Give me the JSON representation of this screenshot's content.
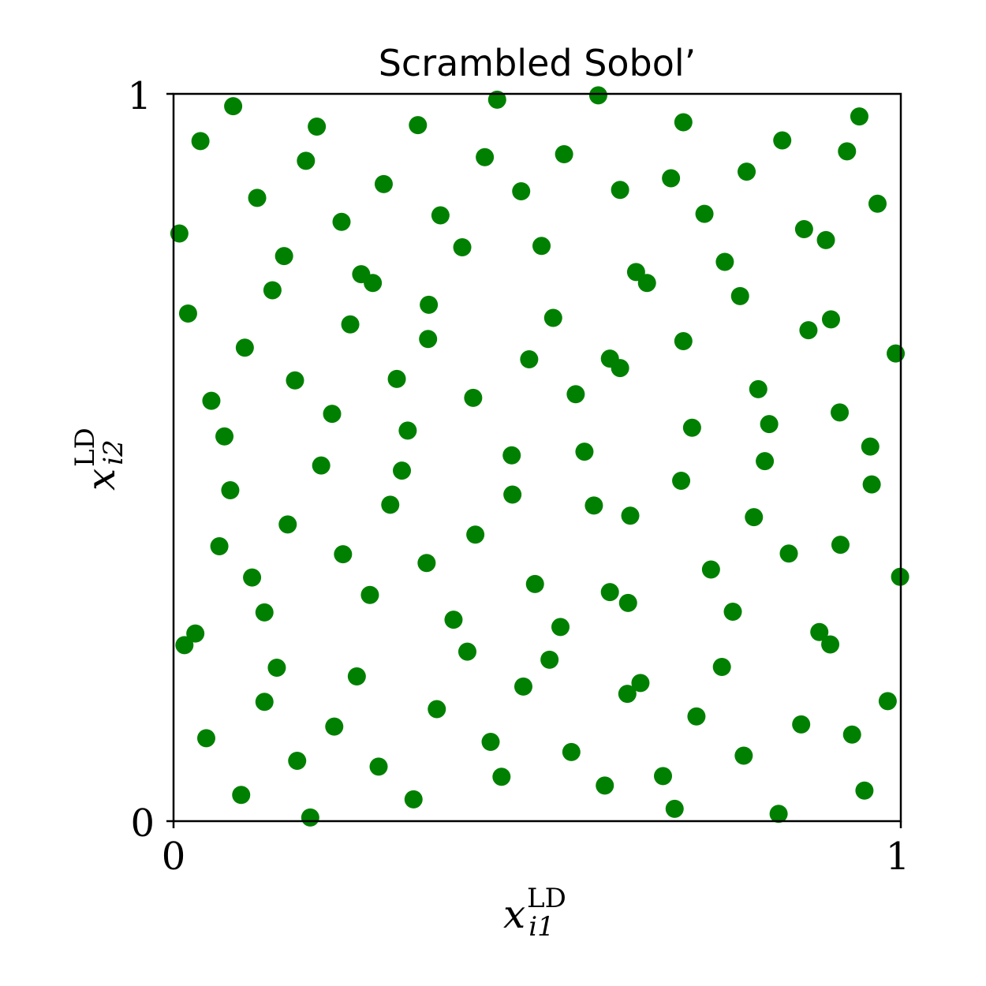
{
  "chart_data": {
    "type": "scatter",
    "title": "Scrambled Sobol’",
    "xlabel": {
      "base": "x",
      "sub": "i1",
      "sup": "LD"
    },
    "ylabel": {
      "base": "x",
      "sub": "i2",
      "sup": "LD"
    },
    "xlim": [
      0,
      1
    ],
    "ylim": [
      0,
      1
    ],
    "xticks": [
      "0",
      "1"
    ],
    "yticks": [
      "0",
      "1"
    ],
    "grid": false,
    "color": "#008000",
    "points": [
      [
        0.082,
        0.983
      ],
      [
        0.445,
        0.992
      ],
      [
        0.584,
        0.998
      ],
      [
        0.037,
        0.935
      ],
      [
        0.197,
        0.955
      ],
      [
        0.336,
        0.957
      ],
      [
        0.701,
        0.961
      ],
      [
        0.943,
        0.969
      ],
      [
        0.182,
        0.908
      ],
      [
        0.428,
        0.913
      ],
      [
        0.537,
        0.917
      ],
      [
        0.837,
        0.936
      ],
      [
        0.926,
        0.921
      ],
      [
        0.289,
        0.876
      ],
      [
        0.478,
        0.866
      ],
      [
        0.614,
        0.868
      ],
      [
        0.684,
        0.884
      ],
      [
        0.788,
        0.893
      ],
      [
        0.115,
        0.857
      ],
      [
        0.367,
        0.833
      ],
      [
        0.73,
        0.835
      ],
      [
        0.968,
        0.849
      ],
      [
        0.008,
        0.808
      ],
      [
        0.231,
        0.824
      ],
      [
        0.867,
        0.814
      ],
      [
        0.897,
        0.799
      ],
      [
        0.152,
        0.777
      ],
      [
        0.397,
        0.789
      ],
      [
        0.506,
        0.791
      ],
      [
        0.758,
        0.769
      ],
      [
        0.258,
        0.752
      ],
      [
        0.274,
        0.74
      ],
      [
        0.636,
        0.755
      ],
      [
        0.651,
        0.74
      ],
      [
        0.136,
        0.73
      ],
      [
        0.779,
        0.722
      ],
      [
        0.02,
        0.698
      ],
      [
        0.351,
        0.71
      ],
      [
        0.522,
        0.692
      ],
      [
        0.243,
        0.683
      ],
      [
        0.873,
        0.675
      ],
      [
        0.904,
        0.69
      ],
      [
        0.701,
        0.66
      ],
      [
        0.098,
        0.651
      ],
      [
        0.35,
        0.663
      ],
      [
        0.489,
        0.635
      ],
      [
        0.6,
        0.636
      ],
      [
        0.993,
        0.643
      ],
      [
        0.307,
        0.608
      ],
      [
        0.614,
        0.623
      ],
      [
        0.167,
        0.606
      ],
      [
        0.052,
        0.578
      ],
      [
        0.412,
        0.582
      ],
      [
        0.553,
        0.587
      ],
      [
        0.804,
        0.594
      ],
      [
        0.218,
        0.56
      ],
      [
        0.916,
        0.562
      ],
      [
        0.07,
        0.529
      ],
      [
        0.322,
        0.537
      ],
      [
        0.713,
        0.541
      ],
      [
        0.819,
        0.546
      ],
      [
        0.958,
        0.515
      ],
      [
        0.465,
        0.503
      ],
      [
        0.565,
        0.508
      ],
      [
        0.203,
        0.489
      ],
      [
        0.813,
        0.495
      ],
      [
        0.314,
        0.482
      ],
      [
        0.078,
        0.455
      ],
      [
        0.96,
        0.463
      ],
      [
        0.698,
        0.468
      ],
      [
        0.466,
        0.449
      ],
      [
        0.578,
        0.434
      ],
      [
        0.298,
        0.435
      ],
      [
        0.628,
        0.42
      ],
      [
        0.157,
        0.408
      ],
      [
        0.798,
        0.418
      ],
      [
        0.415,
        0.394
      ],
      [
        0.063,
        0.378
      ],
      [
        0.233,
        0.367
      ],
      [
        0.917,
        0.38
      ],
      [
        0.846,
        0.368
      ],
      [
        0.348,
        0.355
      ],
      [
        0.739,
        0.346
      ],
      [
        0.999,
        0.336
      ],
      [
        0.108,
        0.335
      ],
      [
        0.497,
        0.326
      ],
      [
        0.27,
        0.311
      ],
      [
        0.6,
        0.315
      ],
      [
        0.625,
        0.3
      ],
      [
        0.125,
        0.287
      ],
      [
        0.769,
        0.288
      ],
      [
        0.385,
        0.277
      ],
      [
        0.532,
        0.267
      ],
      [
        0.03,
        0.258
      ],
      [
        0.015,
        0.242
      ],
      [
        0.888,
        0.26
      ],
      [
        0.903,
        0.243
      ],
      [
        0.404,
        0.233
      ],
      [
        0.517,
        0.222
      ],
      [
        0.142,
        0.211
      ],
      [
        0.754,
        0.212
      ],
      [
        0.252,
        0.199
      ],
      [
        0.481,
        0.185
      ],
      [
        0.642,
        0.19
      ],
      [
        0.624,
        0.175
      ],
      [
        0.125,
        0.164
      ],
      [
        0.982,
        0.165
      ],
      [
        0.362,
        0.154
      ],
      [
        0.719,
        0.144
      ],
      [
        0.863,
        0.133
      ],
      [
        0.221,
        0.13
      ],
      [
        0.045,
        0.114
      ],
      [
        0.436,
        0.109
      ],
      [
        0.933,
        0.119
      ],
      [
        0.547,
        0.095
      ],
      [
        0.784,
        0.09
      ],
      [
        0.17,
        0.083
      ],
      [
        0.282,
        0.075
      ],
      [
        0.451,
        0.061
      ],
      [
        0.673,
        0.062
      ],
      [
        0.593,
        0.049
      ],
      [
        0.95,
        0.042
      ],
      [
        0.093,
        0.036
      ],
      [
        0.33,
        0.03
      ],
      [
        0.689,
        0.017
      ],
      [
        0.188,
        0.005
      ],
      [
        0.832,
        0.01
      ]
    ]
  }
}
